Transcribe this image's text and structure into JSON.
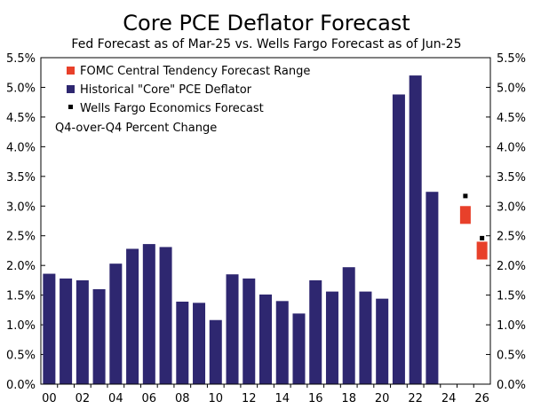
{
  "chart_data": {
    "type": "bar",
    "title": "Core PCE Deflator Forecast",
    "subtitle": "Fed Forecast as of Mar-25 vs. Wells Fargo Forecast as of Jun-25",
    "annotation": "Q4-over-Q4 Percent Change",
    "xlabel": "",
    "ylabel": "",
    "ylim": [
      0,
      5.5
    ],
    "y_ticks": [
      0,
      0.5,
      1.0,
      1.5,
      2.0,
      2.5,
      3.0,
      3.5,
      4.0,
      4.5,
      5.0,
      5.5
    ],
    "y_tick_labels": [
      "0.0%",
      "0.5%",
      "1.0%",
      "1.5%",
      "2.0%",
      "2.5%",
      "3.0%",
      "3.5%",
      "4.0%",
      "4.5%",
      "5.0%",
      "5.5%"
    ],
    "y_axis_both_sides": true,
    "x_tick_labels": [
      "00",
      "02",
      "04",
      "06",
      "08",
      "10",
      "12",
      "14",
      "16",
      "18",
      "20",
      "22",
      "24",
      "26"
    ],
    "legend_position": "top-left",
    "series": [
      {
        "name": "Historical \"Core\" PCE Deflator",
        "kind": "bar",
        "color": "#2e2770",
        "years": [
          2000,
          2001,
          2002,
          2003,
          2004,
          2005,
          2006,
          2007,
          2008,
          2009,
          2010,
          2011,
          2012,
          2013,
          2014,
          2015,
          2016,
          2017,
          2018,
          2019,
          2020,
          2021,
          2022,
          2023
        ],
        "values": [
          1.86,
          1.78,
          1.75,
          1.6,
          2.03,
          2.28,
          2.36,
          2.31,
          1.39,
          1.37,
          1.08,
          1.85,
          1.78,
          1.51,
          1.4,
          1.19,
          1.75,
          1.56,
          1.97,
          1.56,
          1.44,
          4.88,
          5.2,
          3.24
        ]
      },
      {
        "name": "FOMC Central Tendency Forecast Range",
        "kind": "range",
        "color": "#e8402a",
        "years": [
          2025,
          2026
        ],
        "ranges": [
          [
            2.7,
            3.0
          ],
          [
            2.1,
            2.4
          ]
        ]
      },
      {
        "name": "Wells Fargo Economics Forecast",
        "kind": "point",
        "color": "#000000",
        "years": [
          2025,
          2026
        ],
        "values": [
          3.17,
          2.46
        ]
      }
    ]
  }
}
